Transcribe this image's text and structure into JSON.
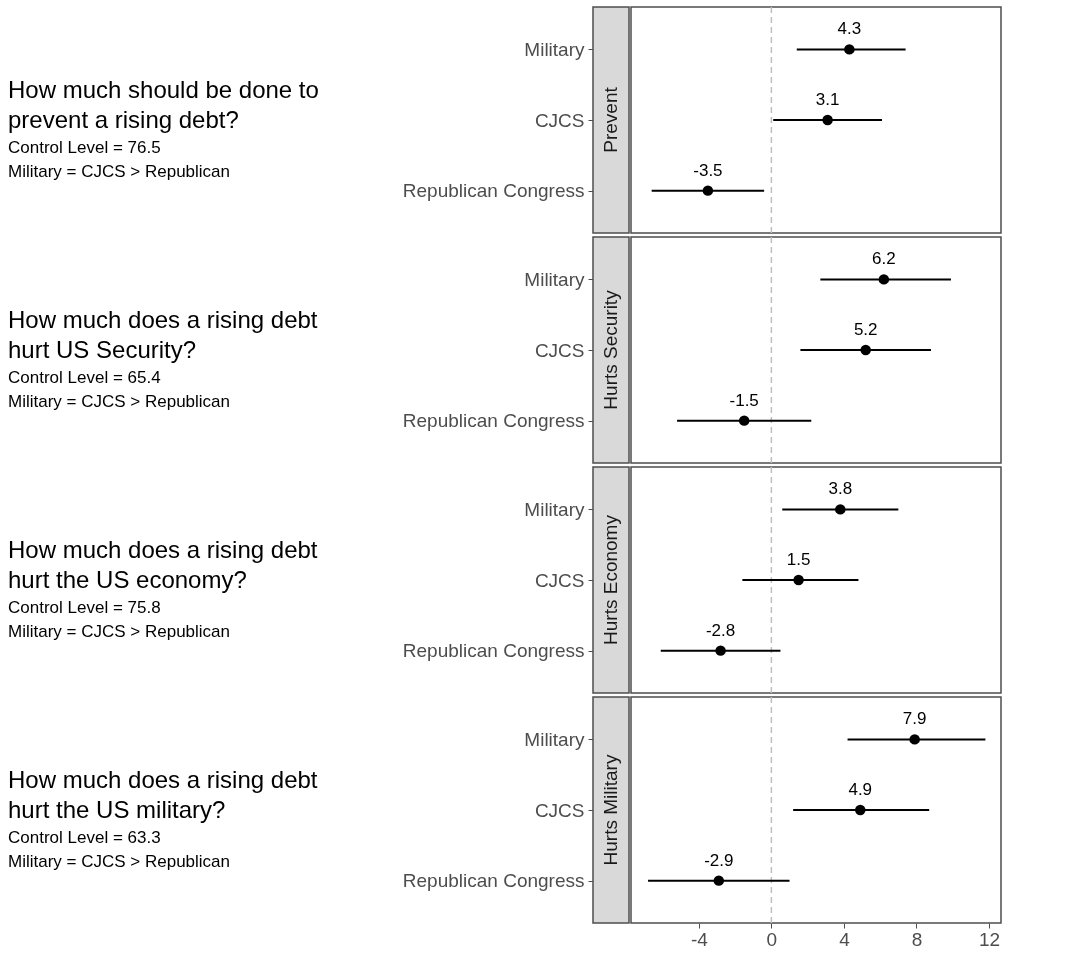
{
  "chart_data": [
    {
      "type": "scatter",
      "orientation": "horizontal",
      "title": "Prevent",
      "categories": [
        "Military",
        "CJCS",
        "Republican Congress"
      ],
      "values": [
        4.3,
        3.1,
        -3.5
      ],
      "errors": [
        [
          1.4,
          7.4
        ],
        [
          0.1,
          6.1
        ],
        [
          -6.6,
          -0.4
        ]
      ],
      "color": "#000000",
      "data_labels": true,
      "xlim": [
        -7.74,
        12.66
      ],
      "xticks": [
        -4,
        0,
        4,
        8,
        12
      ],
      "tick_labels": "y",
      "grid": false,
      "marker": "circle",
      "ref_lines": [
        {
          "axis": "x",
          "value": 0,
          "color": "#bfbfbf",
          "line_style": "dashed"
        }
      ],
      "annotations": [
        "How much should be done to prevent a rising debt?",
        "Control Level = 76.5",
        "Military = CJCS > Republican"
      ]
    },
    {
      "type": "scatter",
      "orientation": "horizontal",
      "title": "Hurts Security",
      "categories": [
        "Military",
        "CJCS",
        "Republican Congress"
      ],
      "values": [
        6.2,
        5.2,
        -1.5
      ],
      "errors": [
        [
          2.7,
          9.9
        ],
        [
          1.6,
          8.8
        ],
        [
          -5.2,
          2.2
        ]
      ],
      "color": "#000000",
      "data_labels": true,
      "xlim": [
        -7.74,
        12.66
      ],
      "xticks": [
        -4,
        0,
        4,
        8,
        12
      ],
      "tick_labels": "y",
      "grid": false,
      "marker": "circle",
      "ref_lines": [
        {
          "axis": "x",
          "value": 0,
          "color": "#bfbfbf",
          "line_style": "dashed"
        }
      ],
      "annotations": [
        "How much does a rising debt hurt US Security?",
        "Control Level = 65.4",
        "Military = CJCS > Republican"
      ]
    },
    {
      "type": "scatter",
      "orientation": "horizontal",
      "title": "Hurts Economy",
      "categories": [
        "Military",
        "CJCS",
        "Republican Congress"
      ],
      "values": [
        3.8,
        1.5,
        -2.8
      ],
      "errors": [
        [
          0.6,
          7.0
        ],
        [
          -1.6,
          4.8
        ],
        [
          -6.1,
          0.5
        ]
      ],
      "color": "#000000",
      "data_labels": true,
      "xlim": [
        -7.74,
        12.66
      ],
      "xticks": [
        -4,
        0,
        4,
        8,
        12
      ],
      "tick_labels": "y",
      "grid": false,
      "marker": "circle",
      "ref_lines": [
        {
          "axis": "x",
          "value": 0,
          "color": "#bfbfbf",
          "line_style": "dashed"
        }
      ],
      "annotations": [
        "How much does a rising debt hurt the US economy?",
        "Control Level = 75.8",
        "Military = CJCS > Republican"
      ]
    },
    {
      "type": "scatter",
      "orientation": "horizontal",
      "title": "Hurts Military",
      "categories": [
        "Military",
        "CJCS",
        "Republican Congress"
      ],
      "values": [
        7.9,
        4.9,
        -2.9
      ],
      "errors": [
        [
          4.2,
          11.8
        ],
        [
          1.2,
          8.7
        ],
        [
          -6.8,
          1.0
        ]
      ],
      "color": "#000000",
      "data_labels": true,
      "xlim": [
        -7.74,
        12.66
      ],
      "xticks": [
        -4,
        0,
        4,
        8,
        12
      ],
      "grid": false,
      "marker": "circle",
      "ref_lines": [
        {
          "axis": "x",
          "value": 0,
          "color": "#bfbfbf",
          "line_style": "dashed"
        }
      ],
      "annotations": [
        "How much does a rising debt hurt the US military?",
        "Control Level = 63.3",
        "Military = CJCS > Republican"
      ]
    }
  ]
}
